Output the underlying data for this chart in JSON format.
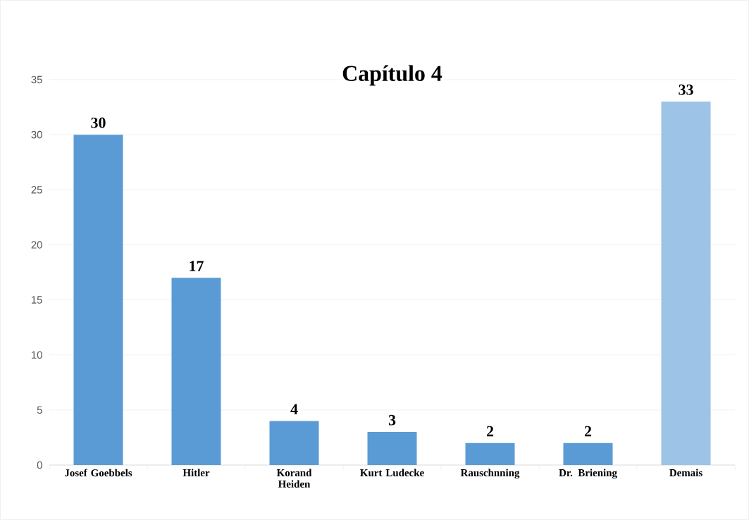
{
  "chart_data": {
    "type": "bar",
    "title": "Capítulo 4",
    "categories": [
      "Josef Goebbels",
      "Hitler",
      "Korand Heiden",
      "Kurt Ludecke",
      "Rauschnning",
      "Dr. Briening",
      "Demais"
    ],
    "values": [
      30,
      17,
      4,
      3,
      2,
      2,
      33
    ],
    "colors": [
      "#5b9bd5",
      "#5b9bd5",
      "#5b9bd5",
      "#5b9bd5",
      "#5b9bd5",
      "#5b9bd5",
      "#9dc3e6"
    ],
    "ylim": [
      0,
      35
    ],
    "yticks": [
      0,
      5,
      10,
      15,
      20,
      25,
      30,
      35
    ],
    "grid": "y",
    "data_labels": true
  }
}
